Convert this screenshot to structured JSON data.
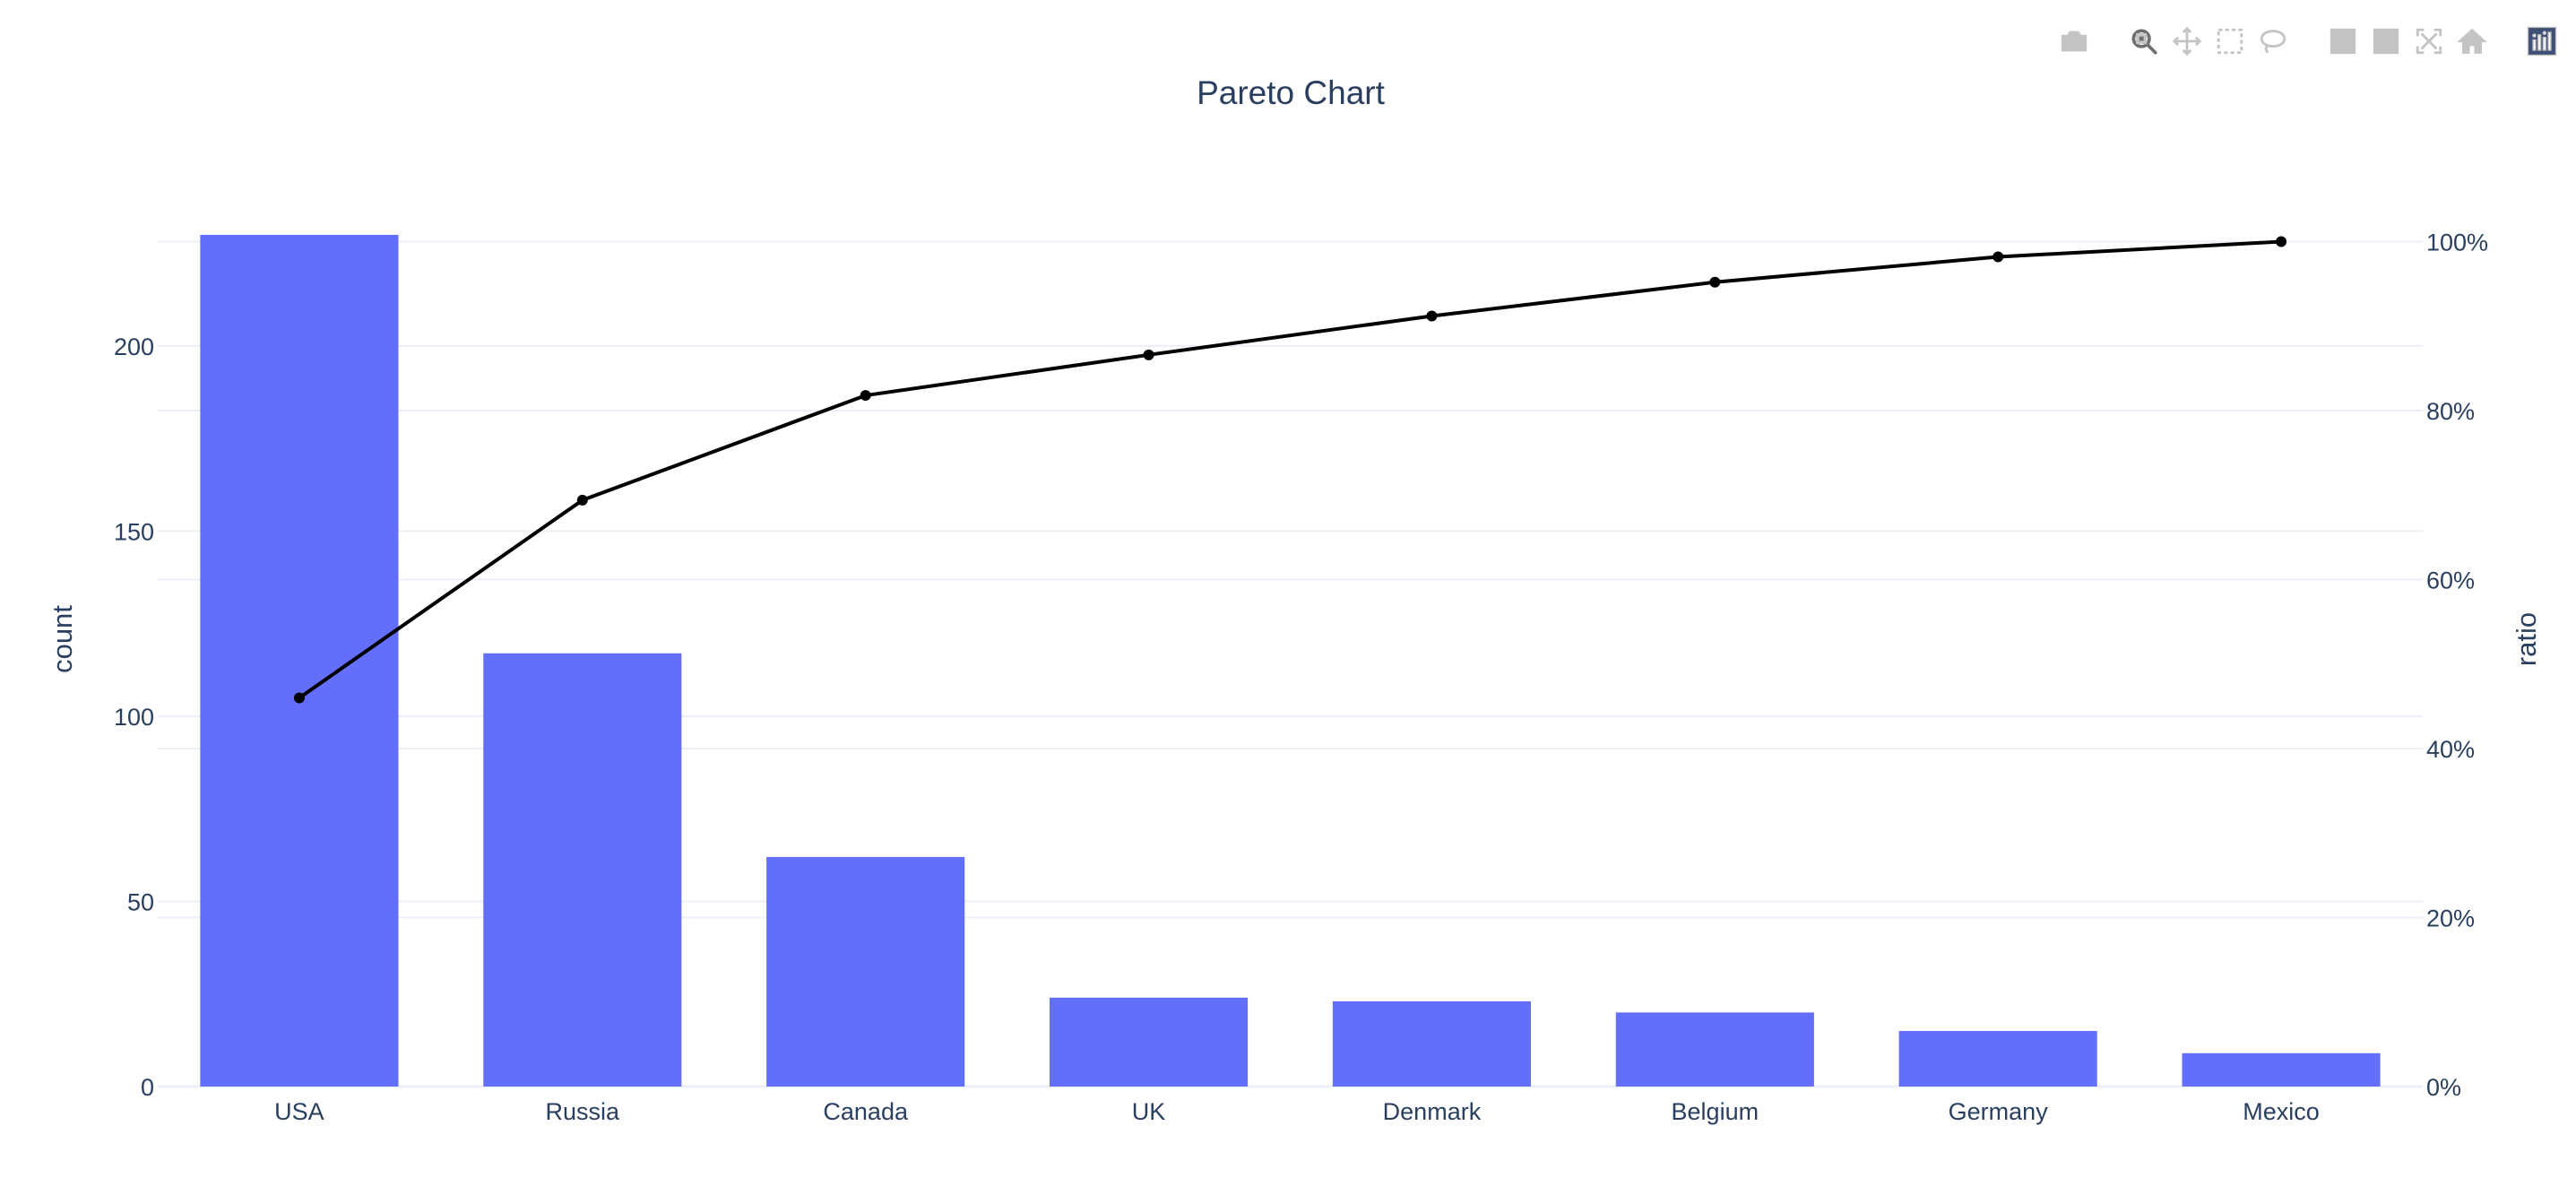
{
  "chart_data": {
    "type": "bar",
    "title": "Pareto Chart",
    "categories": [
      "USA",
      "Russia",
      "Canada",
      "UK",
      "Denmark",
      "Belgium",
      "Germany",
      "Mexico"
    ],
    "series": [
      {
        "values": [
          230,
          117,
          62,
          24,
          23,
          20,
          15,
          9
        ],
        "type": "bar",
        "axis": "y",
        "color": "#636efa"
      },
      {
        "values": [
          0.46,
          0.694,
          0.818,
          0.866,
          0.912,
          0.952,
          0.982,
          1.0
        ],
        "type": "line",
        "axis": "y2",
        "color": "#000000"
      }
    ],
    "ylabel": "count",
    "y2label": "ratio",
    "ylim": [
      0,
      230
    ],
    "y2lim": [
      0,
      1.008
    ],
    "yticks": [
      0,
      50,
      100,
      150,
      200
    ],
    "ytick_labels": [
      "0",
      "50",
      "100",
      "150",
      "200"
    ],
    "y2ticks": [
      0,
      0.2,
      0.4,
      0.6,
      0.8,
      1.0
    ],
    "y2tick_labels": [
      "0%",
      "20%",
      "40%",
      "60%",
      "80%",
      "100%"
    ],
    "grid": true,
    "legend": false
  },
  "colors": {
    "bar": "#636efa",
    "line": "#000000",
    "grid": "#ebf0f8",
    "text": "#2a3f5f",
    "modebar_icon": "#c4c4c4",
    "modebar_active": "#6e6e6e",
    "plotly_logo_bg": "#3f4f75"
  },
  "modebar": {
    "icons": [
      "camera-icon",
      "zoom-icon",
      "pan-icon",
      "box-select-icon",
      "lasso-icon",
      "zoom-in-icon",
      "zoom-out-icon",
      "autoscale-icon",
      "home-icon",
      "plotly-logo-icon"
    ],
    "active": "zoom-icon"
  }
}
